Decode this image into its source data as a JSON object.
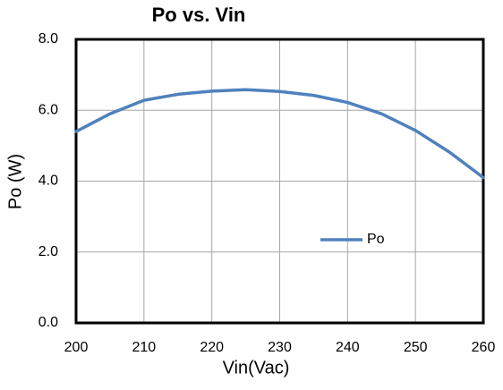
{
  "chart_data": {
    "type": "line",
    "title": "Po vs. Vin",
    "x_label": "Vin(Vac)",
    "y_label": "Po (W)",
    "x": [
      200,
      205,
      210,
      215,
      220,
      225,
      230,
      235,
      240,
      245,
      250,
      255,
      260
    ],
    "series": [
      {
        "name": "Po",
        "color": "#4f81bd",
        "values": [
          5.4,
          5.9,
          6.28,
          6.45,
          6.54,
          6.58,
          6.53,
          6.42,
          6.22,
          5.9,
          5.43,
          4.82,
          4.1
        ]
      }
    ],
    "xlim": [
      200,
      260
    ],
    "xticks": [
      200,
      210,
      220,
      230,
      240,
      250,
      260
    ],
    "ylim": [
      0,
      8
    ],
    "yticks": [
      {
        "value": 0,
        "label": "0.0"
      },
      {
        "value": 2,
        "label": "2.0"
      },
      {
        "value": 4,
        "label": "4.0"
      },
      {
        "value": 6,
        "label": "6.0"
      },
      {
        "value": 8,
        "label": "8.0"
      }
    ],
    "grid": true,
    "legend": "right"
  }
}
